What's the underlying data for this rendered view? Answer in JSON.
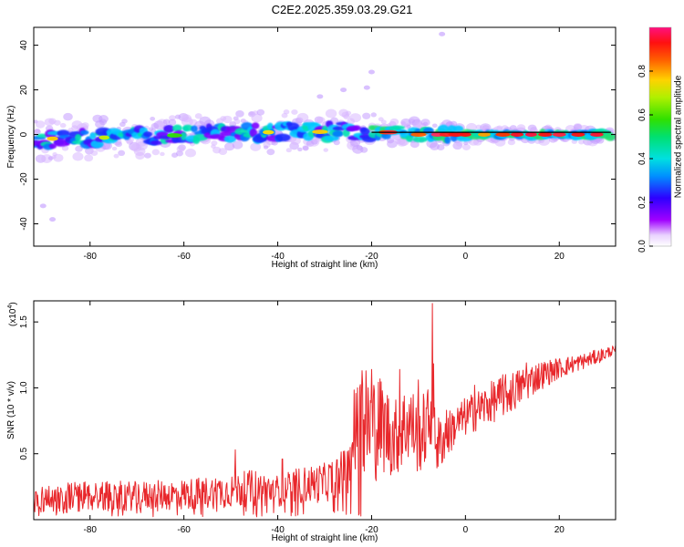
{
  "title": "C2E2.2025.359.03.29.G21",
  "colors": {
    "snr_line": "#e8282c",
    "track_line": "#000000"
  },
  "chart_data": [
    {
      "type": "heatmap",
      "title": "C2E2.2025.359.03.29.G21",
      "xlabel": "Height of straight line (km)",
      "ylabel": "Frequency (Hz)",
      "xlim": [
        -92,
        32
      ],
      "ylim": [
        -50,
        48
      ],
      "xticks": [
        -80,
        -60,
        -40,
        -20,
        0,
        20
      ],
      "yticks": [
        -40,
        -20,
        0,
        20,
        40
      ],
      "colorbar": {
        "label": "Normalized spectral amplitude",
        "range": [
          0,
          1
        ],
        "ticks": [
          0.0,
          0.2,
          0.4,
          0.6,
          0.8
        ],
        "tick_labels": [
          "0.0",
          "0.2",
          "0.4",
          "0.6",
          "0.8"
        ],
        "colormap": "rainbow (white-violet-blue-cyan-green-yellow-red-magenta)"
      },
      "centerline": {
        "x_start": -20,
        "x_end": 31,
        "frequency": 1
      },
      "band_center": [
        [
          -92,
          -3
        ],
        [
          -85,
          -1
        ],
        [
          -80,
          -2
        ],
        [
          -75,
          -1
        ],
        [
          -70,
          -1
        ],
        [
          -65,
          -1
        ],
        [
          -60,
          0
        ],
        [
          -55,
          0
        ],
        [
          -50,
          1
        ],
        [
          -45,
          1
        ],
        [
          -40,
          1
        ],
        [
          -35,
          2
        ],
        [
          -30,
          1
        ],
        [
          -25,
          2
        ],
        [
          -20,
          1
        ],
        [
          -15,
          1
        ],
        [
          -10,
          0
        ],
        [
          -5,
          0
        ],
        [
          0,
          0
        ],
        [
          10,
          0
        ],
        [
          20,
          0
        ],
        [
          31,
          0
        ]
      ],
      "outliers": [
        [
          -90,
          -32
        ],
        [
          -88,
          -38
        ],
        [
          -31,
          17
        ],
        [
          -26,
          20
        ],
        [
          -21,
          21
        ],
        [
          -5,
          45
        ],
        [
          -20,
          28
        ]
      ]
    },
    {
      "type": "line",
      "xlabel": "Height of straight line (km)",
      "ylabel": "SNR (10 * v/v)",
      "scale_label": "(x10",
      "scale_exponent": "4",
      "xlim": [
        -92,
        32
      ],
      "ylim": [
        0,
        1.66
      ],
      "xticks": [
        -80,
        -60,
        -40,
        -20,
        0,
        20
      ],
      "yticks": [
        0.5,
        1.0,
        1.5
      ],
      "ytick_labels": [
        "0.5",
        "1.0",
        "1.5"
      ],
      "series": [
        {
          "name": "SNR",
          "envelope_x": [
            -92,
            -85,
            -80,
            -70,
            -60,
            -50,
            -45,
            -40,
            -35,
            -30,
            -25,
            -24,
            -22,
            -20,
            -18,
            -15,
            -12,
            -10,
            -8,
            -7,
            -6,
            -5,
            -2,
            0,
            5,
            10,
            15,
            20,
            25,
            30,
            31
          ],
          "envelope_mean": [
            0.15,
            0.17,
            0.18,
            0.18,
            0.19,
            0.22,
            0.24,
            0.22,
            0.26,
            0.28,
            0.38,
            0.6,
            0.75,
            0.7,
            0.72,
            0.62,
            0.75,
            0.62,
            0.72,
            0.95,
            0.55,
            0.6,
            0.72,
            0.78,
            0.88,
            0.97,
            1.08,
            1.15,
            1.2,
            1.26,
            1.28
          ],
          "envelope_amp": [
            0.1,
            0.12,
            0.12,
            0.11,
            0.12,
            0.13,
            0.14,
            0.12,
            0.14,
            0.15,
            0.18,
            0.4,
            0.45,
            0.45,
            0.38,
            0.3,
            0.32,
            0.28,
            0.3,
            0.35,
            0.25,
            0.2,
            0.15,
            0.15,
            0.16,
            0.16,
            0.12,
            0.08,
            0.06,
            0.05,
            0.04
          ],
          "peaks": [
            [
              -49,
              0.53
            ],
            [
              -39,
              0.46
            ],
            [
              -23,
              1.0
            ],
            [
              -22,
              1.13
            ],
            [
              -20,
              1.14
            ],
            [
              -14,
              1.14
            ],
            [
              -10,
              1.06
            ],
            [
              -7,
              1.64
            ],
            [
              -4,
              0.83
            ],
            [
              2,
              1.02
            ],
            [
              8,
              1.1
            ],
            [
              13,
              1.19
            ]
          ]
        }
      ]
    }
  ]
}
